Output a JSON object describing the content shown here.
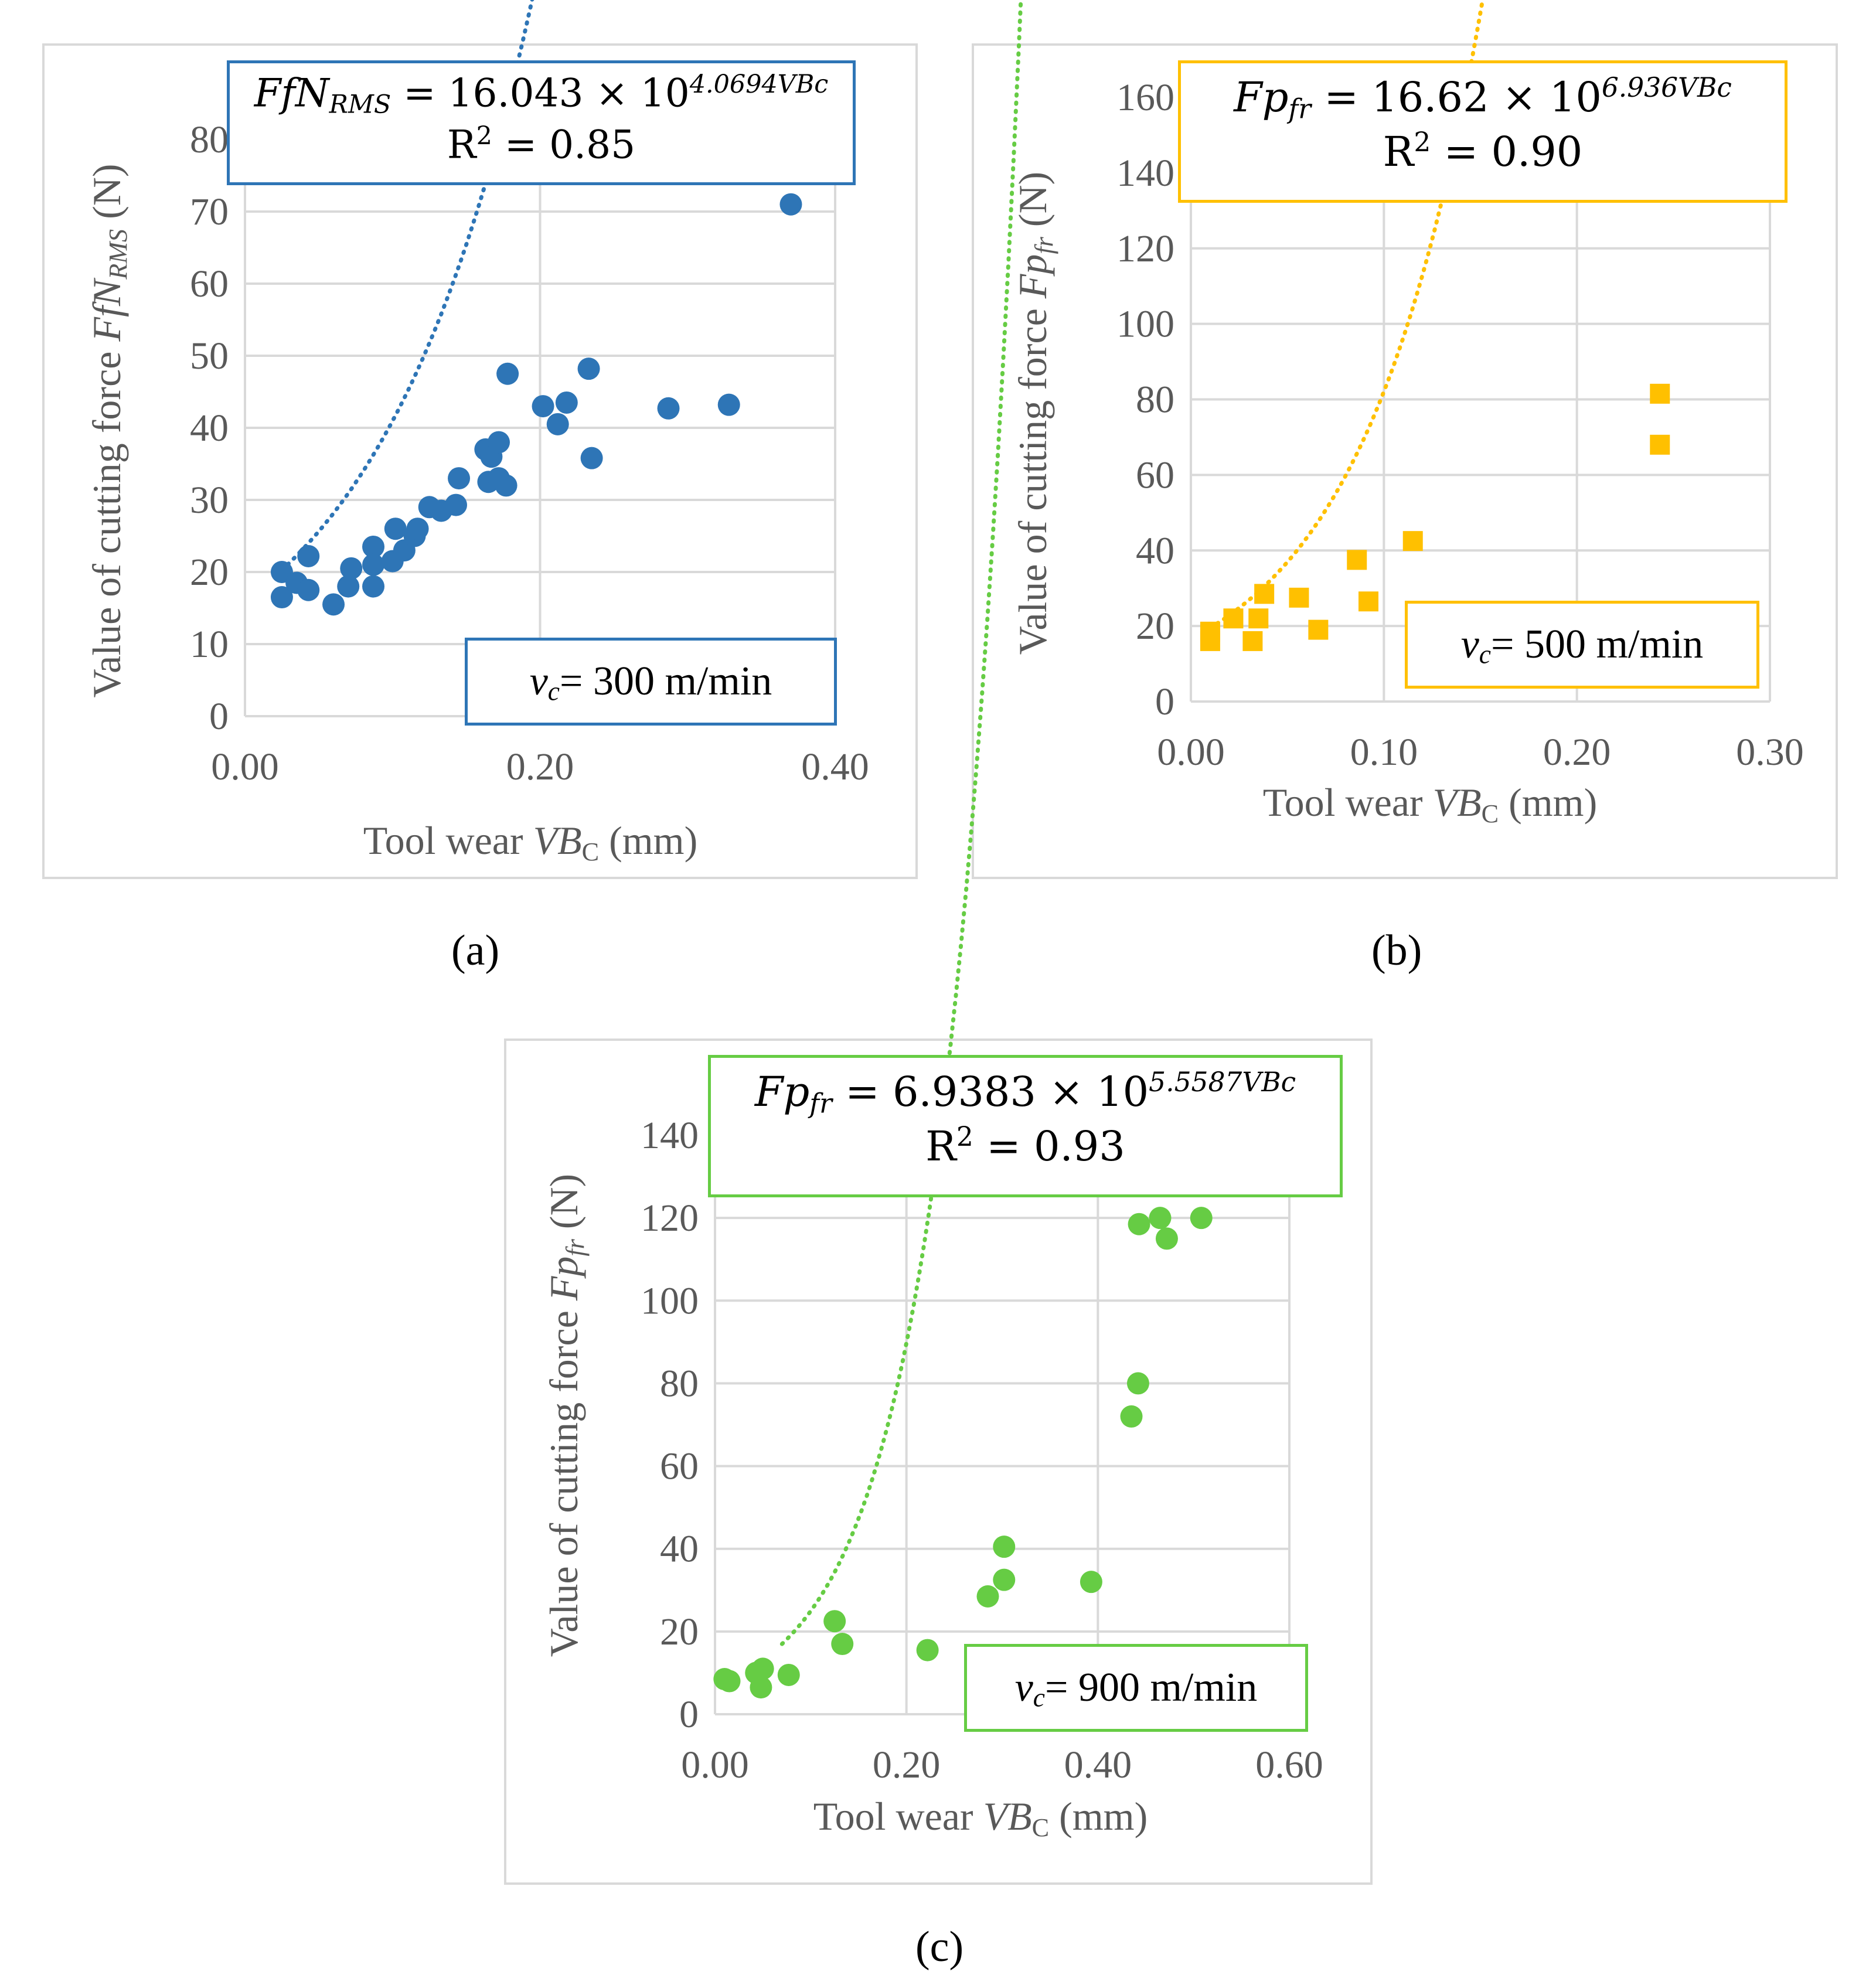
{
  "colors": {
    "a": "#2e75b6",
    "b": "#ffc000",
    "c": "#66cc44",
    "grid": "#d9d9d9",
    "axis_text": "#595959"
  },
  "chart_data": [
    {
      "id": "a",
      "type": "scatter",
      "caption": "(a)",
      "equation": {
        "lhs_main": "FfN",
        "lhs_sub": "RMS",
        "rhs": "= 16.043 × 10",
        "exp": "4.0694VBc",
        "r2_label": "R",
        "r2_exp": "2",
        "r2_value": " = 0.85"
      },
      "speed": {
        "symbol": "v",
        "sub": "c",
        "value": "= 300 m/min"
      },
      "xlabel": {
        "pre": "Tool wear ",
        "var": "VB",
        "sub": "C",
        "post": " (mm)"
      },
      "ylabel": {
        "pre": "Value of cutting force ",
        "var": "FfN",
        "sub": "RMS",
        "post": " (N)"
      },
      "xlim": [
        0,
        0.4
      ],
      "ylim": [
        0,
        80
      ],
      "xticks": [
        "0.00",
        "0.20",
        "0.40"
      ],
      "yticks": [
        "0",
        "10",
        "20",
        "30",
        "40",
        "50",
        "60",
        "70",
        "80"
      ],
      "marker": "circle",
      "trend": {
        "a": 16.043,
        "b": 4.0694,
        "x_start": 0.025,
        "x_end": 0.37
      },
      "points": [
        [
          0.025,
          20
        ],
        [
          0.025,
          16.5
        ],
        [
          0.035,
          18.5
        ],
        [
          0.043,
          17.5
        ],
        [
          0.043,
          22.2
        ],
        [
          0.06,
          15.5
        ],
        [
          0.07,
          18
        ],
        [
          0.072,
          20.5
        ],
        [
          0.087,
          23.5
        ],
        [
          0.087,
          21
        ],
        [
          0.087,
          18
        ],
        [
          0.1,
          21.5
        ],
        [
          0.102,
          26
        ],
        [
          0.108,
          23
        ],
        [
          0.115,
          25
        ],
        [
          0.117,
          26
        ],
        [
          0.125,
          29
        ],
        [
          0.133,
          28.5
        ],
        [
          0.143,
          29.3
        ],
        [
          0.145,
          33
        ],
        [
          0.163,
          37
        ],
        [
          0.165,
          32.5
        ],
        [
          0.167,
          36
        ],
        [
          0.172,
          38
        ],
        [
          0.172,
          33
        ],
        [
          0.177,
          32
        ],
        [
          0.178,
          47.5
        ],
        [
          0.202,
          43
        ],
        [
          0.212,
          40.5
        ],
        [
          0.218,
          43.5
        ],
        [
          0.233,
          48.2
        ],
        [
          0.235,
          35.8
        ],
        [
          0.287,
          42.7
        ],
        [
          0.328,
          43.2
        ],
        [
          0.37,
          71
        ]
      ]
    },
    {
      "id": "b",
      "type": "scatter",
      "caption": "(b)",
      "equation": {
        "lhs_main": "Fp",
        "lhs_sub": "fr",
        "rhs": "= 16.62 × 10",
        "exp": "6.936VBc",
        "r2_label": "R",
        "r2_exp": "2",
        "r2_value": " = 0.90"
      },
      "speed": {
        "symbol": "v",
        "sub": "c",
        "value": "= 500 m/min"
      },
      "xlabel": {
        "pre": "Tool wear ",
        "var": "VB",
        "sub": "C",
        "post": " (mm)"
      },
      "ylabel": {
        "pre": "Value of cutting force ",
        "var": "Fp",
        "sub": "fr",
        "post": " (N)"
      },
      "xlim": [
        0,
        0.3
      ],
      "ylim": [
        0,
        160
      ],
      "xticks": [
        "0.00",
        "0.10",
        "0.20",
        "0.30"
      ],
      "yticks": [
        "0",
        "20",
        "40",
        "60",
        "80",
        "100",
        "120",
        "140",
        "160"
      ],
      "marker": "square",
      "trend": {
        "a": 16.62,
        "b": 6.936,
        "x_start": 0.01,
        "x_end": 0.262
      },
      "points": [
        [
          0.01,
          18.5
        ],
        [
          0.01,
          16
        ],
        [
          0.022,
          22
        ],
        [
          0.032,
          16
        ],
        [
          0.035,
          22
        ],
        [
          0.038,
          28.5
        ],
        [
          0.056,
          27.5
        ],
        [
          0.066,
          19
        ],
        [
          0.086,
          37.5
        ],
        [
          0.092,
          26.5
        ],
        [
          0.115,
          42.5
        ],
        [
          0.243,
          81.5
        ],
        [
          0.243,
          68
        ]
      ]
    },
    {
      "id": "c",
      "type": "scatter",
      "caption": "(c)",
      "equation": {
        "lhs_main": "Fp",
        "lhs_sub": "fr",
        "rhs": "= 6.9383 × 10",
        "exp": "5.5587VBc",
        "r2_label": "R",
        "r2_exp": "2",
        "r2_value": " = 0.93"
      },
      "speed": {
        "symbol": "v",
        "sub": "c",
        "value": "= 900 m/min"
      },
      "xlabel": {
        "pre": "Tool wear ",
        "var": "VB",
        "sub": "C",
        "post": " (mm)"
      },
      "ylabel": {
        "pre": "Value of cutting force ",
        "var": "Fp",
        "sub": "fr",
        "post": " (N)"
      },
      "xlim": [
        0,
        0.6
      ],
      "ylim": [
        0,
        140
      ],
      "xticks": [
        "0.00",
        "0.20",
        "0.40",
        "0.60"
      ],
      "yticks": [
        "0",
        "20",
        "40",
        "60",
        "80",
        "100",
        "120",
        "140"
      ],
      "marker": "circle",
      "trend": {
        "a": 6.9383,
        "b": 5.5587,
        "x_start": 0.07,
        "x_end": 0.51
      },
      "points": [
        [
          0.01,
          8.5
        ],
        [
          0.015,
          8
        ],
        [
          0.043,
          10
        ],
        [
          0.048,
          6.5
        ],
        [
          0.05,
          11
        ],
        [
          0.077,
          9.5
        ],
        [
          0.125,
          22.5
        ],
        [
          0.133,
          17
        ],
        [
          0.222,
          15.5
        ],
        [
          0.285,
          28.5
        ],
        [
          0.302,
          40.5
        ],
        [
          0.302,
          32.5
        ],
        [
          0.393,
          32
        ],
        [
          0.435,
          72
        ],
        [
          0.442,
          80
        ],
        [
          0.443,
          118.5
        ],
        [
          0.465,
          120
        ],
        [
          0.472,
          115
        ],
        [
          0.508,
          120
        ]
      ]
    }
  ]
}
